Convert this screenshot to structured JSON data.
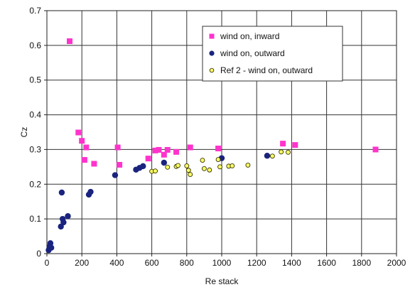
{
  "chart_data": {
    "type": "scatter",
    "title": "",
    "xlabel": "Re stack",
    "ylabel": "Cz",
    "xlim": [
      0,
      2000
    ],
    "ylim": [
      0,
      0.7
    ],
    "x_ticks": [
      0,
      200,
      400,
      600,
      800,
      1000,
      1200,
      1400,
      1600,
      1800,
      2000
    ],
    "y_ticks": [
      0,
      0.1,
      0.2,
      0.3,
      0.4,
      0.5,
      0.6,
      0.7
    ],
    "y_tick_labels": [
      "0",
      "0.1",
      "0.2",
      "0.3",
      "0.4",
      "0.5",
      "0.6",
      "0.7"
    ],
    "grid": true,
    "legend_position": "top-right",
    "series": [
      {
        "name": "wind on, inward",
        "color": "#ff33cc",
        "marker": "square",
        "points": [
          [
            130,
            0.612
          ],
          [
            180,
            0.349
          ],
          [
            200,
            0.325
          ],
          [
            215,
            0.27
          ],
          [
            225,
            0.306
          ],
          [
            270,
            0.259
          ],
          [
            405,
            0.306
          ],
          [
            415,
            0.256
          ],
          [
            580,
            0.274
          ],
          [
            620,
            0.297
          ],
          [
            640,
            0.299
          ],
          [
            670,
            0.285
          ],
          [
            690,
            0.299
          ],
          [
            740,
            0.293
          ],
          [
            820,
            0.306
          ],
          [
            980,
            0.303
          ],
          [
            1350,
            0.317
          ],
          [
            1420,
            0.313
          ],
          [
            1880,
            0.3
          ]
        ]
      },
      {
        "name": "wind on, outward",
        "color": "#1a237e",
        "marker": "circle",
        "points": [
          [
            10,
            0.01
          ],
          [
            15,
            0.02
          ],
          [
            20,
            0.03
          ],
          [
            25,
            0.017
          ],
          [
            80,
            0.078
          ],
          [
            85,
            0.176
          ],
          [
            90,
            0.1
          ],
          [
            95,
            0.09
          ],
          [
            120,
            0.108
          ],
          [
            240,
            0.17
          ],
          [
            250,
            0.178
          ],
          [
            390,
            0.226
          ],
          [
            510,
            0.242
          ],
          [
            530,
            0.247
          ],
          [
            550,
            0.252
          ],
          [
            670,
            0.262
          ],
          [
            1000,
            0.275
          ],
          [
            1260,
            0.282
          ]
        ]
      },
      {
        "name": "Ref 2 - wind on, outward",
        "color": "#ffff66",
        "edge": "#333300",
        "marker": "circle-small",
        "points": [
          [
            600,
            0.237
          ],
          [
            620,
            0.238
          ],
          [
            690,
            0.249
          ],
          [
            740,
            0.251
          ],
          [
            750,
            0.254
          ],
          [
            800,
            0.253
          ],
          [
            810,
            0.24
          ],
          [
            820,
            0.228
          ],
          [
            890,
            0.269
          ],
          [
            900,
            0.245
          ],
          [
            930,
            0.241
          ],
          [
            980,
            0.271
          ],
          [
            990,
            0.25
          ],
          [
            1040,
            0.252
          ],
          [
            1060,
            0.253
          ],
          [
            1150,
            0.255
          ],
          [
            1290,
            0.281
          ],
          [
            1340,
            0.293
          ],
          [
            1380,
            0.292
          ]
        ]
      }
    ]
  }
}
